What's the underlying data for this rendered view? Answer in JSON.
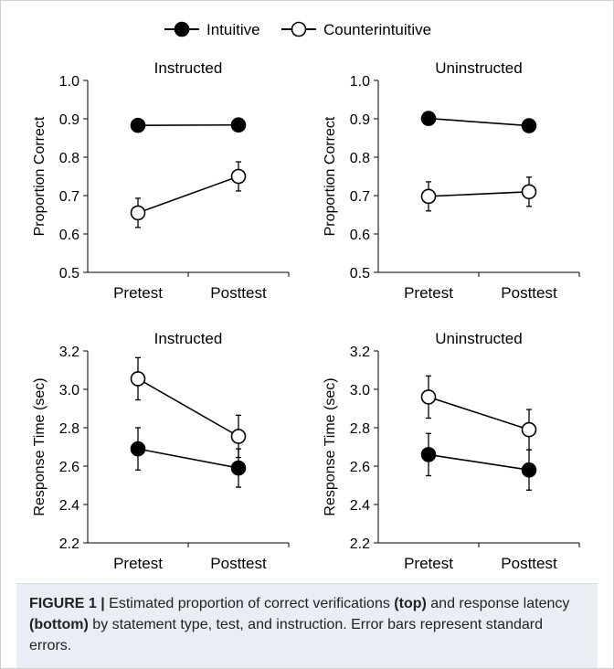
{
  "legend": [
    {
      "name": "Intuitive",
      "fill": "#000000"
    },
    {
      "name": "Counterintuitive",
      "fill": "#ffffff"
    }
  ],
  "caption": {
    "label": "FIGURE 1 |",
    "t1": " Estimated proportion of correct verifications ",
    "b1": "(top)",
    "t2": " and response latency ",
    "b2": "(bottom)",
    "t3": " by statement type, test, and instruction. Error bars represent standard errors."
  },
  "chart_data": [
    {
      "type": "line",
      "title": "Instructed",
      "ylabel": "Proportion Correct",
      "categories": [
        "Pretest",
        "Posttest"
      ],
      "ylim": [
        0.5,
        1.0
      ],
      "yticks": [
        "0.5",
        "0.6",
        "0.7",
        "0.8",
        "0.9",
        "1.0"
      ],
      "series": [
        {
          "name": "Intuitive",
          "values": [
            0.883,
            0.884
          ],
          "se": [
            0.013,
            0.012
          ],
          "fill": "#000000"
        },
        {
          "name": "Counterintuitive",
          "values": [
            0.655,
            0.75
          ],
          "se": [
            0.038,
            0.038
          ],
          "fill": "#ffffff"
        }
      ]
    },
    {
      "type": "line",
      "title": "Uninstructed",
      "ylabel": "Proportion Correct",
      "categories": [
        "Pretest",
        "Posttest"
      ],
      "ylim": [
        0.5,
        1.0
      ],
      "yticks": [
        "0.5",
        "0.6",
        "0.7",
        "0.8",
        "0.9",
        "1.0"
      ],
      "series": [
        {
          "name": "Intuitive",
          "values": [
            0.901,
            0.882
          ],
          "se": [
            0.012,
            0.013
          ],
          "fill": "#000000"
        },
        {
          "name": "Counterintuitive",
          "values": [
            0.698,
            0.71
          ],
          "se": [
            0.038,
            0.038
          ],
          "fill": "#ffffff"
        }
      ]
    },
    {
      "type": "line",
      "title": "Instructed",
      "ylabel": "Response Time (sec)",
      "categories": [
        "Pretest",
        "Posttest"
      ],
      "ylim": [
        2.2,
        3.2
      ],
      "yticks": [
        "2.2",
        "2.4",
        "2.6",
        "2.8",
        "3.0",
        "3.2"
      ],
      "series": [
        {
          "name": "Intuitive",
          "values": [
            2.69,
            2.59
          ],
          "se": [
            0.11,
            0.1
          ],
          "fill": "#000000"
        },
        {
          "name": "Counterintuitive",
          "values": [
            3.055,
            2.755
          ],
          "se": [
            0.11,
            0.11
          ],
          "fill": "#ffffff"
        }
      ]
    },
    {
      "type": "line",
      "title": "Uninstructed",
      "ylabel": "Response Time (sec)",
      "categories": [
        "Pretest",
        "Posttest"
      ],
      "ylim": [
        2.2,
        3.2
      ],
      "yticks": [
        "2.2",
        "2.4",
        "2.6",
        "2.8",
        "3.0",
        "3.2"
      ],
      "series": [
        {
          "name": "Intuitive",
          "values": [
            2.66,
            2.58
          ],
          "se": [
            0.11,
            0.105
          ],
          "fill": "#000000"
        },
        {
          "name": "Counterintuitive",
          "values": [
            2.96,
            2.79
          ],
          "se": [
            0.11,
            0.105
          ],
          "fill": "#ffffff"
        }
      ]
    }
  ]
}
